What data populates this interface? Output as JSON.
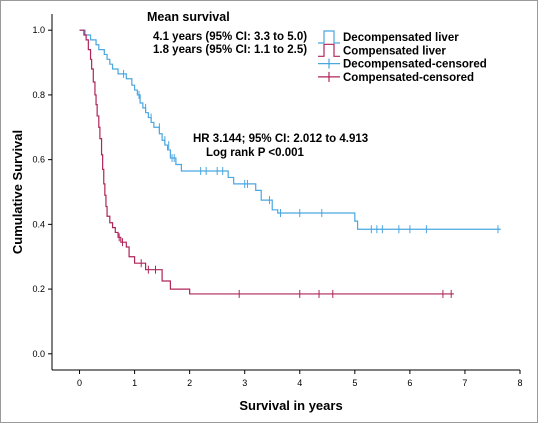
{
  "chart_data": {
    "type": "line",
    "subtype": "kaplan-meier",
    "xlabel": "Survival in years",
    "ylabel": "Cumulative Survival",
    "xlim": [
      -0.5,
      8
    ],
    "ylim": [
      -0.05,
      1.05
    ],
    "xticks": [
      0,
      1,
      2,
      3,
      4,
      5,
      6,
      7,
      8
    ],
    "yticks": [
      0.0,
      0.2,
      0.4,
      0.6,
      0.8,
      1.0
    ],
    "grid": false,
    "legend_position": "top-right",
    "legend": [
      {
        "label": "Decompensated liver",
        "color": "#4aa7e0",
        "kind": "line"
      },
      {
        "label": "Compensated liver",
        "color": "#b0245a",
        "kind": "line"
      },
      {
        "label": "Decompensated-censored",
        "color": "#4aa7e0",
        "kind": "censor"
      },
      {
        "label": "Compensated-censored",
        "color": "#b0245a",
        "kind": "censor"
      }
    ],
    "annotations": {
      "mean_title": "Mean survival",
      "mean_decomp": "4.1 years (95% CI: 3.3 to 5.0)",
      "mean_comp": "1.8 years (95% CI: 1.1 to 2.5)",
      "hr_line": "HR 3.144; 95% CI: 2.012 to 4.913",
      "logrank_line": "Log rank P <0.001"
    },
    "series": [
      {
        "name": "Decompensated liver",
        "color": "#4aa7e0",
        "steps": [
          [
            0.0,
            1.0
          ],
          [
            0.1,
            0.985
          ],
          [
            0.2,
            0.97
          ],
          [
            0.3,
            0.955
          ],
          [
            0.35,
            0.94
          ],
          [
            0.45,
            0.925
          ],
          [
            0.5,
            0.91
          ],
          [
            0.55,
            0.895
          ],
          [
            0.6,
            0.88
          ],
          [
            0.7,
            0.865
          ],
          [
            0.85,
            0.85
          ],
          [
            0.95,
            0.83
          ],
          [
            1.0,
            0.815
          ],
          [
            1.05,
            0.8
          ],
          [
            1.1,
            0.775
          ],
          [
            1.15,
            0.76
          ],
          [
            1.2,
            0.745
          ],
          [
            1.25,
            0.73
          ],
          [
            1.3,
            0.715
          ],
          [
            1.35,
            0.7
          ],
          [
            1.45,
            0.68
          ],
          [
            1.5,
            0.66
          ],
          [
            1.55,
            0.645
          ],
          [
            1.6,
            0.63
          ],
          [
            1.65,
            0.605
          ],
          [
            1.75,
            0.585
          ],
          [
            1.85,
            0.565
          ],
          [
            2.7,
            0.545
          ],
          [
            2.8,
            0.525
          ],
          [
            3.2,
            0.505
          ],
          [
            3.3,
            0.475
          ],
          [
            3.5,
            0.445
          ],
          [
            3.6,
            0.435
          ],
          [
            5.0,
            0.41
          ],
          [
            5.05,
            0.385
          ]
        ],
        "end_x": 7.65,
        "censored": [
          [
            0.8,
            0.865
          ],
          [
            1.08,
            0.8
          ],
          [
            1.2,
            0.76
          ],
          [
            1.3,
            0.73
          ],
          [
            1.45,
            0.7
          ],
          [
            1.55,
            0.66
          ],
          [
            1.62,
            0.645
          ],
          [
            1.68,
            0.605
          ],
          [
            1.72,
            0.605
          ],
          [
            2.2,
            0.565
          ],
          [
            2.3,
            0.565
          ],
          [
            2.5,
            0.565
          ],
          [
            2.6,
            0.565
          ],
          [
            3.0,
            0.525
          ],
          [
            3.05,
            0.525
          ],
          [
            3.45,
            0.475
          ],
          [
            3.65,
            0.435
          ],
          [
            4.0,
            0.435
          ],
          [
            4.4,
            0.435
          ],
          [
            5.3,
            0.385
          ],
          [
            5.4,
            0.385
          ],
          [
            5.5,
            0.385
          ],
          [
            5.8,
            0.385
          ],
          [
            6.0,
            0.385
          ],
          [
            6.3,
            0.385
          ],
          [
            7.6,
            0.385
          ]
        ]
      },
      {
        "name": "Compensated liver",
        "color": "#b0245a",
        "steps": [
          [
            0.0,
            1.0
          ],
          [
            0.08,
            0.985
          ],
          [
            0.12,
            0.97
          ],
          [
            0.16,
            0.94
          ],
          [
            0.2,
            0.91
          ],
          [
            0.22,
            0.88
          ],
          [
            0.25,
            0.84
          ],
          [
            0.28,
            0.8
          ],
          [
            0.3,
            0.77
          ],
          [
            0.32,
            0.735
          ],
          [
            0.35,
            0.7
          ],
          [
            0.37,
            0.665
          ],
          [
            0.4,
            0.615
          ],
          [
            0.42,
            0.57
          ],
          [
            0.44,
            0.525
          ],
          [
            0.46,
            0.49
          ],
          [
            0.48,
            0.455
          ],
          [
            0.5,
            0.425
          ],
          [
            0.55,
            0.405
          ],
          [
            0.6,
            0.39
          ],
          [
            0.65,
            0.375
          ],
          [
            0.7,
            0.36
          ],
          [
            0.75,
            0.345
          ],
          [
            0.85,
            0.33
          ],
          [
            0.9,
            0.3
          ],
          [
            1.0,
            0.28
          ],
          [
            1.2,
            0.26
          ],
          [
            1.5,
            0.225
          ],
          [
            1.65,
            0.2
          ],
          [
            2.0,
            0.185
          ]
        ],
        "end_x": 6.8,
        "censored": [
          [
            0.72,
            0.36
          ],
          [
            0.78,
            0.345
          ],
          [
            1.12,
            0.28
          ],
          [
            1.25,
            0.26
          ],
          [
            1.38,
            0.26
          ],
          [
            2.9,
            0.185
          ],
          [
            4.0,
            0.185
          ],
          [
            4.35,
            0.185
          ],
          [
            4.6,
            0.185
          ],
          [
            6.6,
            0.185
          ],
          [
            6.75,
            0.185
          ]
        ]
      }
    ]
  }
}
